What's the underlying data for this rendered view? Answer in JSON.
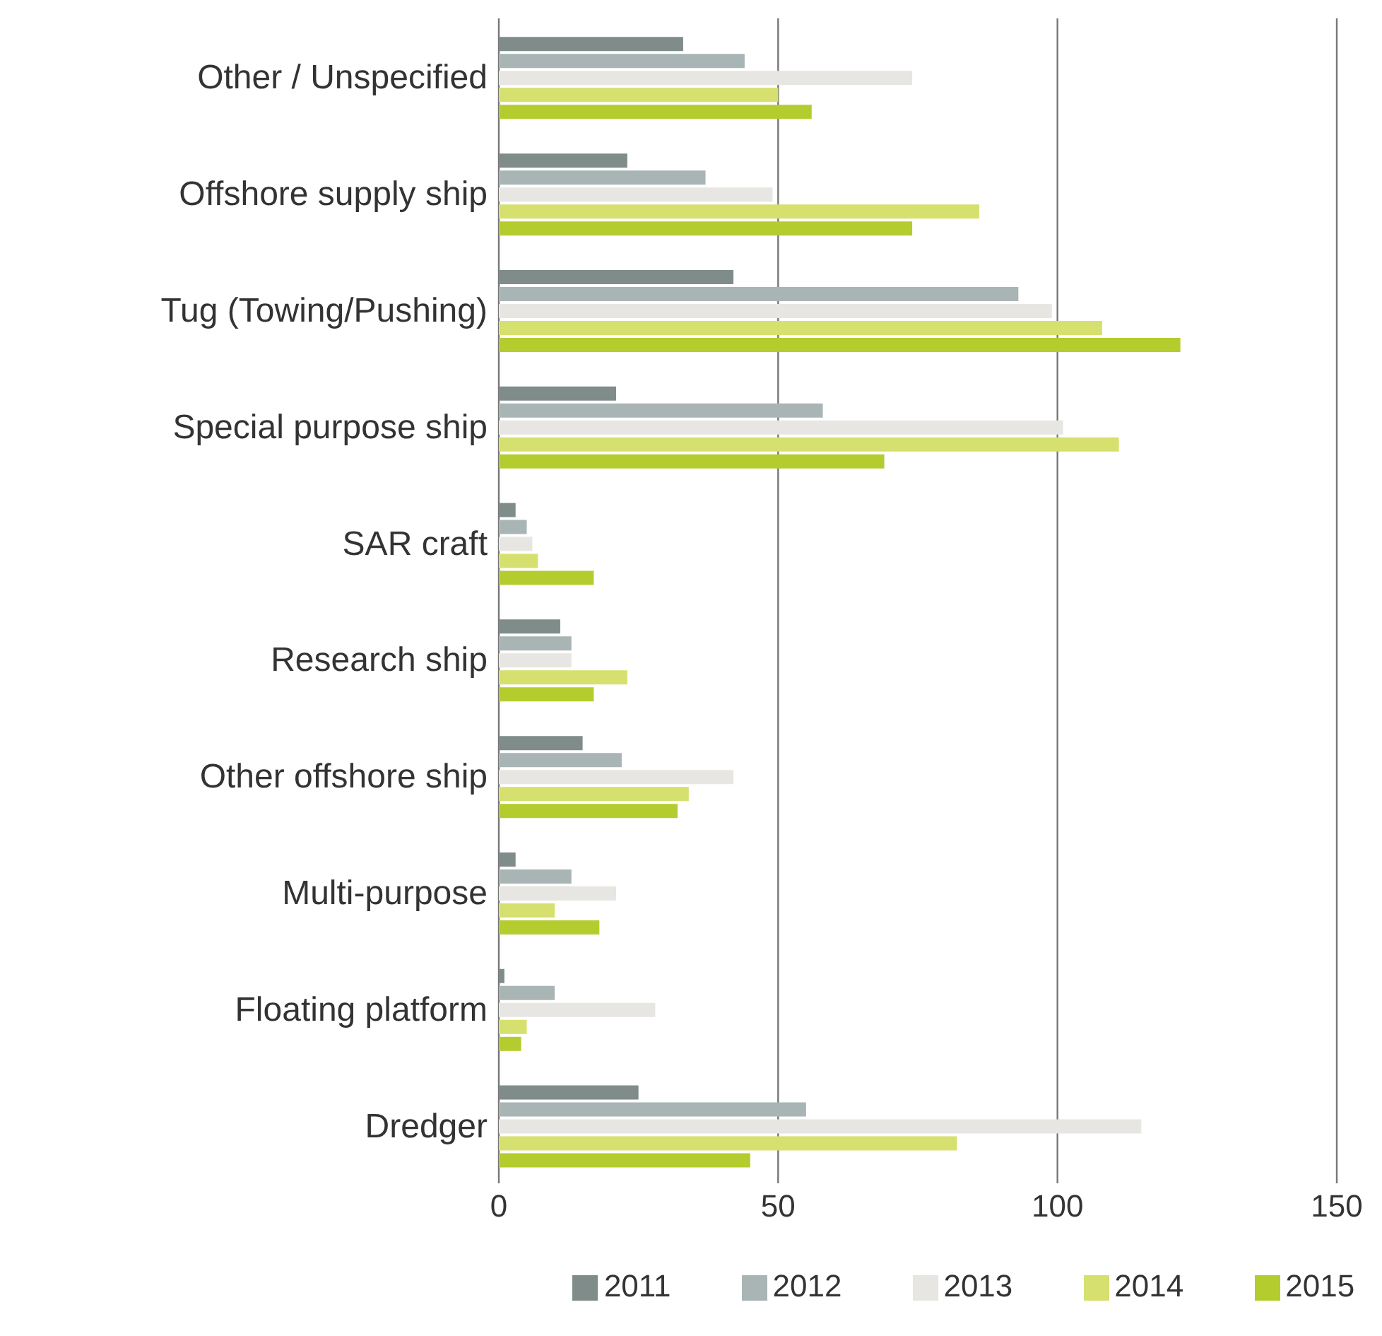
{
  "chart_data": {
    "type": "bar",
    "orientation": "horizontal",
    "categories": [
      "Other / Unspecified",
      "Offshore supply ship",
      "Tug (Towing/Pushing)",
      "Special purpose ship",
      "SAR craft",
      "Research ship",
      "Other offshore ship",
      "Multi-purpose",
      "Floating platform",
      "Dredger"
    ],
    "series": [
      {
        "name": "2011",
        "color": "#7f8c8a",
        "values": [
          33,
          23,
          42,
          21,
          3,
          11,
          15,
          3,
          1,
          25
        ]
      },
      {
        "name": "2012",
        "color": "#a9b5b5",
        "values": [
          44,
          37,
          93,
          58,
          5,
          13,
          22,
          13,
          10,
          55
        ]
      },
      {
        "name": "2013",
        "color": "#e8e6e2",
        "values": [
          74,
          49,
          99,
          101,
          6,
          13,
          42,
          21,
          28,
          115
        ]
      },
      {
        "name": "2014",
        "color": "#d6e06e",
        "values": [
          50,
          86,
          108,
          111,
          7,
          23,
          34,
          10,
          5,
          82
        ]
      },
      {
        "name": "2015",
        "color": "#b5cc2e",
        "values": [
          56,
          74,
          122,
          69,
          17,
          17,
          32,
          18,
          4,
          45
        ]
      }
    ],
    "xlim": [
      0,
      150
    ],
    "xticks": [
      0,
      50,
      100,
      150
    ],
    "grid": "x",
    "legend": "bottom"
  }
}
